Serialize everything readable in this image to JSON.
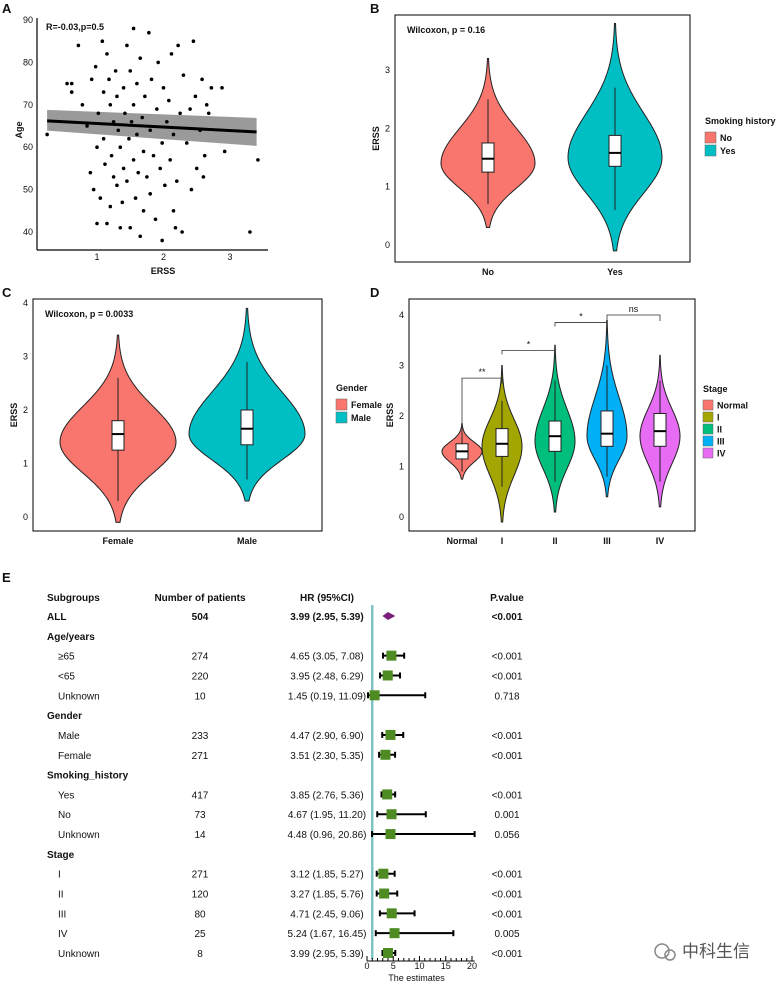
{
  "panel_labels": [
    "A",
    "B",
    "C",
    "D",
    "E"
  ],
  "watermark": "中科生信",
  "chart_data": [
    {
      "type": "scatter",
      "panel": "A",
      "annotation": "R=-0.03,p=0.5",
      "xlabel": "ERSS",
      "ylabel": "Age",
      "xticks": [
        "1",
        "2",
        "3"
      ],
      "yticks": [
        "40",
        "50",
        "60",
        "70",
        "80",
        "90"
      ],
      "xlim": [
        0.2,
        3.5
      ],
      "ylim": [
        36,
        90
      ],
      "regression": {
        "x": [
          0.25,
          3.4
        ],
        "y": [
          66.2,
          63.6
        ],
        "ci_low": [
          63.9,
          60.3
        ],
        "ci_high": [
          68.8,
          66.9
        ]
      },
      "points": [
        [
          0.25,
          63
        ],
        [
          0.55,
          75
        ],
        [
          0.62,
          73
        ],
        [
          0.62,
          75
        ],
        [
          0.72,
          84
        ],
        [
          0.78,
          70
        ],
        [
          0.85,
          65
        ],
        [
          0.9,
          54
        ],
        [
          0.92,
          76
        ],
        [
          0.95,
          50
        ],
        [
          0.98,
          79
        ],
        [
          1.0,
          42
        ],
        [
          1.0,
          60
        ],
        [
          1.02,
          68
        ],
        [
          1.05,
          48
        ],
        [
          1.08,
          85
        ],
        [
          1.1,
          73
        ],
        [
          1.1,
          62
        ],
        [
          1.12,
          56
        ],
        [
          1.15,
          42
        ],
        [
          1.15,
          82
        ],
        [
          1.18,
          76
        ],
        [
          1.2,
          70
        ],
        [
          1.2,
          46
        ],
        [
          1.22,
          58
        ],
        [
          1.25,
          53
        ],
        [
          1.25,
          66
        ],
        [
          1.28,
          78
        ],
        [
          1.3,
          51
        ],
        [
          1.3,
          72
        ],
        [
          1.32,
          64
        ],
        [
          1.35,
          41
        ],
        [
          1.35,
          60
        ],
        [
          1.38,
          47
        ],
        [
          1.4,
          74
        ],
        [
          1.4,
          55
        ],
        [
          1.42,
          68
        ],
        [
          1.45,
          52
        ],
        [
          1.45,
          84
        ],
        [
          1.48,
          62
        ],
        [
          1.5,
          78
        ],
        [
          1.5,
          41
        ],
        [
          1.52,
          66
        ],
        [
          1.55,
          88
        ],
        [
          1.55,
          57
        ],
        [
          1.55,
          70
        ],
        [
          1.58,
          48
        ],
        [
          1.6,
          75
        ],
        [
          1.6,
          63
        ],
        [
          1.62,
          54
        ],
        [
          1.65,
          39
        ],
        [
          1.65,
          81
        ],
        [
          1.68,
          67
        ],
        [
          1.7,
          45
        ],
        [
          1.7,
          59
        ],
        [
          1.72,
          72
        ],
        [
          1.75,
          53
        ],
        [
          1.78,
          87
        ],
        [
          1.8,
          64
        ],
        [
          1.8,
          49
        ],
        [
          1.82,
          76
        ],
        [
          1.85,
          58
        ],
        [
          1.88,
          43
        ],
        [
          1.9,
          69
        ],
        [
          1.92,
          80
        ],
        [
          1.95,
          55
        ],
        [
          1.98,
          38
        ],
        [
          1.98,
          61
        ],
        [
          2.0,
          74
        ],
        [
          2.02,
          51
        ],
        [
          2.05,
          66
        ],
        [
          2.08,
          71
        ],
        [
          2.1,
          57
        ],
        [
          2.12,
          82
        ],
        [
          2.15,
          45
        ],
        [
          2.15,
          63
        ],
        [
          2.18,
          41
        ],
        [
          2.2,
          52
        ],
        [
          2.22,
          84
        ],
        [
          2.25,
          68
        ],
        [
          2.28,
          40
        ],
        [
          2.3,
          77
        ],
        [
          2.35,
          61
        ],
        [
          2.4,
          69
        ],
        [
          2.42,
          50
        ],
        [
          2.45,
          85
        ],
        [
          2.48,
          72
        ],
        [
          2.5,
          55
        ],
        [
          2.55,
          64
        ],
        [
          2.58,
          76
        ],
        [
          2.6,
          53
        ],
        [
          2.62,
          58
        ],
        [
          2.65,
          70
        ],
        [
          2.68,
          68
        ],
        [
          2.72,
          74
        ],
        [
          2.88,
          74
        ],
        [
          2.92,
          59
        ],
        [
          3.3,
          40
        ],
        [
          3.42,
          57
        ]
      ]
    },
    {
      "type": "violin",
      "panel": "B",
      "annotation": "Wilcoxon, p = 0.16",
      "ylabel": "ERSS",
      "yticks": [
        "0",
        "1",
        "2",
        "3"
      ],
      "ylim": [
        -0.3,
        4.0
      ],
      "legend_title": "Smoking history",
      "legend_placement": "right",
      "groups": [
        {
          "name": "No",
          "color": "#F8766D",
          "min": 0.3,
          "max": 3.2,
          "mode": 1.4,
          "q1": 1.25,
          "median": 1.48,
          "q3": 1.75,
          "wlo": 0.7,
          "whi": 2.5
        },
        {
          "name": "Yes",
          "color": "#00BFC4",
          "min": -0.1,
          "max": 3.8,
          "mode": 1.5,
          "q1": 1.35,
          "median": 1.58,
          "q3": 1.88,
          "wlo": 0.6,
          "whi": 2.7
        }
      ]
    },
    {
      "type": "violin",
      "panel": "C",
      "annotation": "Wilcoxon, p = 0.0033",
      "ylabel": "ERSS",
      "yticks": [
        "0",
        "1",
        "2",
        "3",
        "4"
      ],
      "ylim": [
        -0.3,
        4.1
      ],
      "legend_title": "Gender",
      "legend_placement": "right",
      "groups": [
        {
          "name": "Female",
          "color": "#F8766D",
          "min": -0.1,
          "max": 3.4,
          "mode": 1.4,
          "q1": 1.25,
          "median": 1.55,
          "q3": 1.8,
          "wlo": 0.3,
          "whi": 2.6
        },
        {
          "name": "Male",
          "color": "#00BFC4",
          "min": 0.3,
          "max": 3.9,
          "mode": 1.55,
          "q1": 1.35,
          "median": 1.65,
          "q3": 2.0,
          "wlo": 0.7,
          "whi": 2.9
        }
      ]
    },
    {
      "type": "violin",
      "panel": "D",
      "ylabel": "ERSS",
      "yticks": [
        "0",
        "1",
        "2",
        "3",
        "4"
      ],
      "ylim": [
        -0.3,
        4.3
      ],
      "legend_title": "Stage",
      "legend_placement": "right",
      "groups": [
        {
          "name": "Normal",
          "color": "#F8766D",
          "min": 0.75,
          "max": 1.85,
          "mode": 1.3,
          "q1": 1.15,
          "median": 1.3,
          "q3": 1.45,
          "wlo": 0.9,
          "whi": 1.7
        },
        {
          "name": "I",
          "color": "#A3A500",
          "min": -0.1,
          "max": 3.0,
          "mode": 1.4,
          "q1": 1.2,
          "median": 1.45,
          "q3": 1.75,
          "wlo": 0.6,
          "whi": 2.3
        },
        {
          "name": "II",
          "color": "#00BF7D",
          "min": 0.1,
          "max": 3.4,
          "mode": 1.5,
          "q1": 1.3,
          "median": 1.6,
          "q3": 1.9,
          "wlo": 0.7,
          "whi": 2.7
        },
        {
          "name": "III",
          "color": "#00B0F6",
          "min": 0.4,
          "max": 3.9,
          "mode": 1.6,
          "q1": 1.4,
          "median": 1.65,
          "q3": 2.1,
          "wlo": 0.8,
          "whi": 3.0
        },
        {
          "name": "IV",
          "color": "#E76BF3",
          "min": 0.2,
          "max": 3.2,
          "mode": 1.6,
          "q1": 1.4,
          "median": 1.7,
          "q3": 2.05,
          "wlo": 0.7,
          "whi": 2.7
        }
      ],
      "comparisons": [
        {
          "pair": [
            "Normal",
            "I"
          ],
          "label": "**",
          "y": 2.75
        },
        {
          "pair": [
            "I",
            "II"
          ],
          "label": "*",
          "y": 3.3
        },
        {
          "pair": [
            "II",
            "III"
          ],
          "label": "*",
          "y": 3.85
        },
        {
          "pair": [
            "III",
            "IV"
          ],
          "label": "ns",
          "y": 4.0
        }
      ]
    },
    {
      "type": "forest",
      "panel": "E",
      "headers": {
        "subgroup": "Subgroups",
        "n": "Number of patients",
        "hr": "HR (95%CI)",
        "p": "P.value"
      },
      "xlabel": "The estimates",
      "xticks": [
        "0",
        "5",
        "10",
        "15",
        "20"
      ],
      "xlim": [
        0,
        20
      ],
      "reference": 1,
      "rows": [
        {
          "label": "ALL",
          "n": "504",
          "hr_text": "3.99 (2.95, 5.39)",
          "p": "<0.001",
          "hr": 3.99,
          "lo": 2.95,
          "hi": 5.39,
          "kind": "overall"
        },
        {
          "label": "Age/years",
          "kind": "section"
        },
        {
          "label": "≥65",
          "n": "274",
          "hr_text": "4.65 (3.05, 7.08)",
          "p": "<0.001",
          "hr": 4.65,
          "lo": 3.05,
          "hi": 7.08
        },
        {
          "label": "<65",
          "n": "220",
          "hr_text": "3.95 (2.48, 6.29)",
          "p": "<0.001",
          "hr": 3.95,
          "lo": 2.48,
          "hi": 6.29
        },
        {
          "label": "Unknown",
          "n": "10",
          "hr_text": "1.45 (0.19, 11.09)",
          "p": "0.718",
          "hr": 1.45,
          "lo": 0.19,
          "hi": 11.09
        },
        {
          "label": "Gender",
          "kind": "section"
        },
        {
          "label": "Male",
          "n": "233",
          "hr_text": "4.47 (2.90, 6.90)",
          "p": "<0.001",
          "hr": 4.47,
          "lo": 2.9,
          "hi": 6.9
        },
        {
          "label": "Female",
          "n": "271",
          "hr_text": "3.51 (2.30, 5.35)",
          "p": "<0.001",
          "hr": 3.51,
          "lo": 2.3,
          "hi": 5.35
        },
        {
          "label": "Smoking_history",
          "kind": "section"
        },
        {
          "label": "Yes",
          "n": "417",
          "hr_text": "3.85 (2.76, 5.36)",
          "p": "<0.001",
          "hr": 3.85,
          "lo": 2.76,
          "hi": 5.36
        },
        {
          "label": "No",
          "n": "73",
          "hr_text": "4.67 (1.95, 11.20)",
          "p": "0.001",
          "hr": 4.67,
          "lo": 1.95,
          "hi": 11.2
        },
        {
          "label": "Unknown",
          "n": "14",
          "hr_text": "4.48 (0.96, 20.86)",
          "p": "0.056",
          "hr": 4.48,
          "lo": 0.96,
          "hi": 20.86
        },
        {
          "label": "Stage",
          "kind": "section"
        },
        {
          "label": "I",
          "n": "271",
          "hr_text": "3.12 (1.85, 5.27)",
          "p": "<0.001",
          "hr": 3.12,
          "lo": 1.85,
          "hi": 5.27
        },
        {
          "label": "II",
          "n": "120",
          "hr_text": "3.27 (1.85, 5.76)",
          "p": "<0.001",
          "hr": 3.27,
          "lo": 1.85,
          "hi": 5.76
        },
        {
          "label": "III",
          "n": "80",
          "hr_text": "4.71 (2.45, 9.06)",
          "p": "<0.001",
          "hr": 4.71,
          "lo": 2.45,
          "hi": 9.06
        },
        {
          "label": "IV",
          "n": "25",
          "hr_text": "5.24 (1.67, 16.45)",
          "p": "0.005",
          "hr": 5.24,
          "lo": 1.67,
          "hi": 16.45
        },
        {
          "label": "Unknown",
          "n": "8",
          "hr_text": "3.99 (2.95, 5.39)",
          "p": "<0.001",
          "hr": 3.99,
          "lo": 2.95,
          "hi": 5.39
        }
      ],
      "colors": {
        "overall": "#7B1F7E",
        "box": "#4E8B22",
        "reference": "#7FC4C4"
      }
    }
  ]
}
